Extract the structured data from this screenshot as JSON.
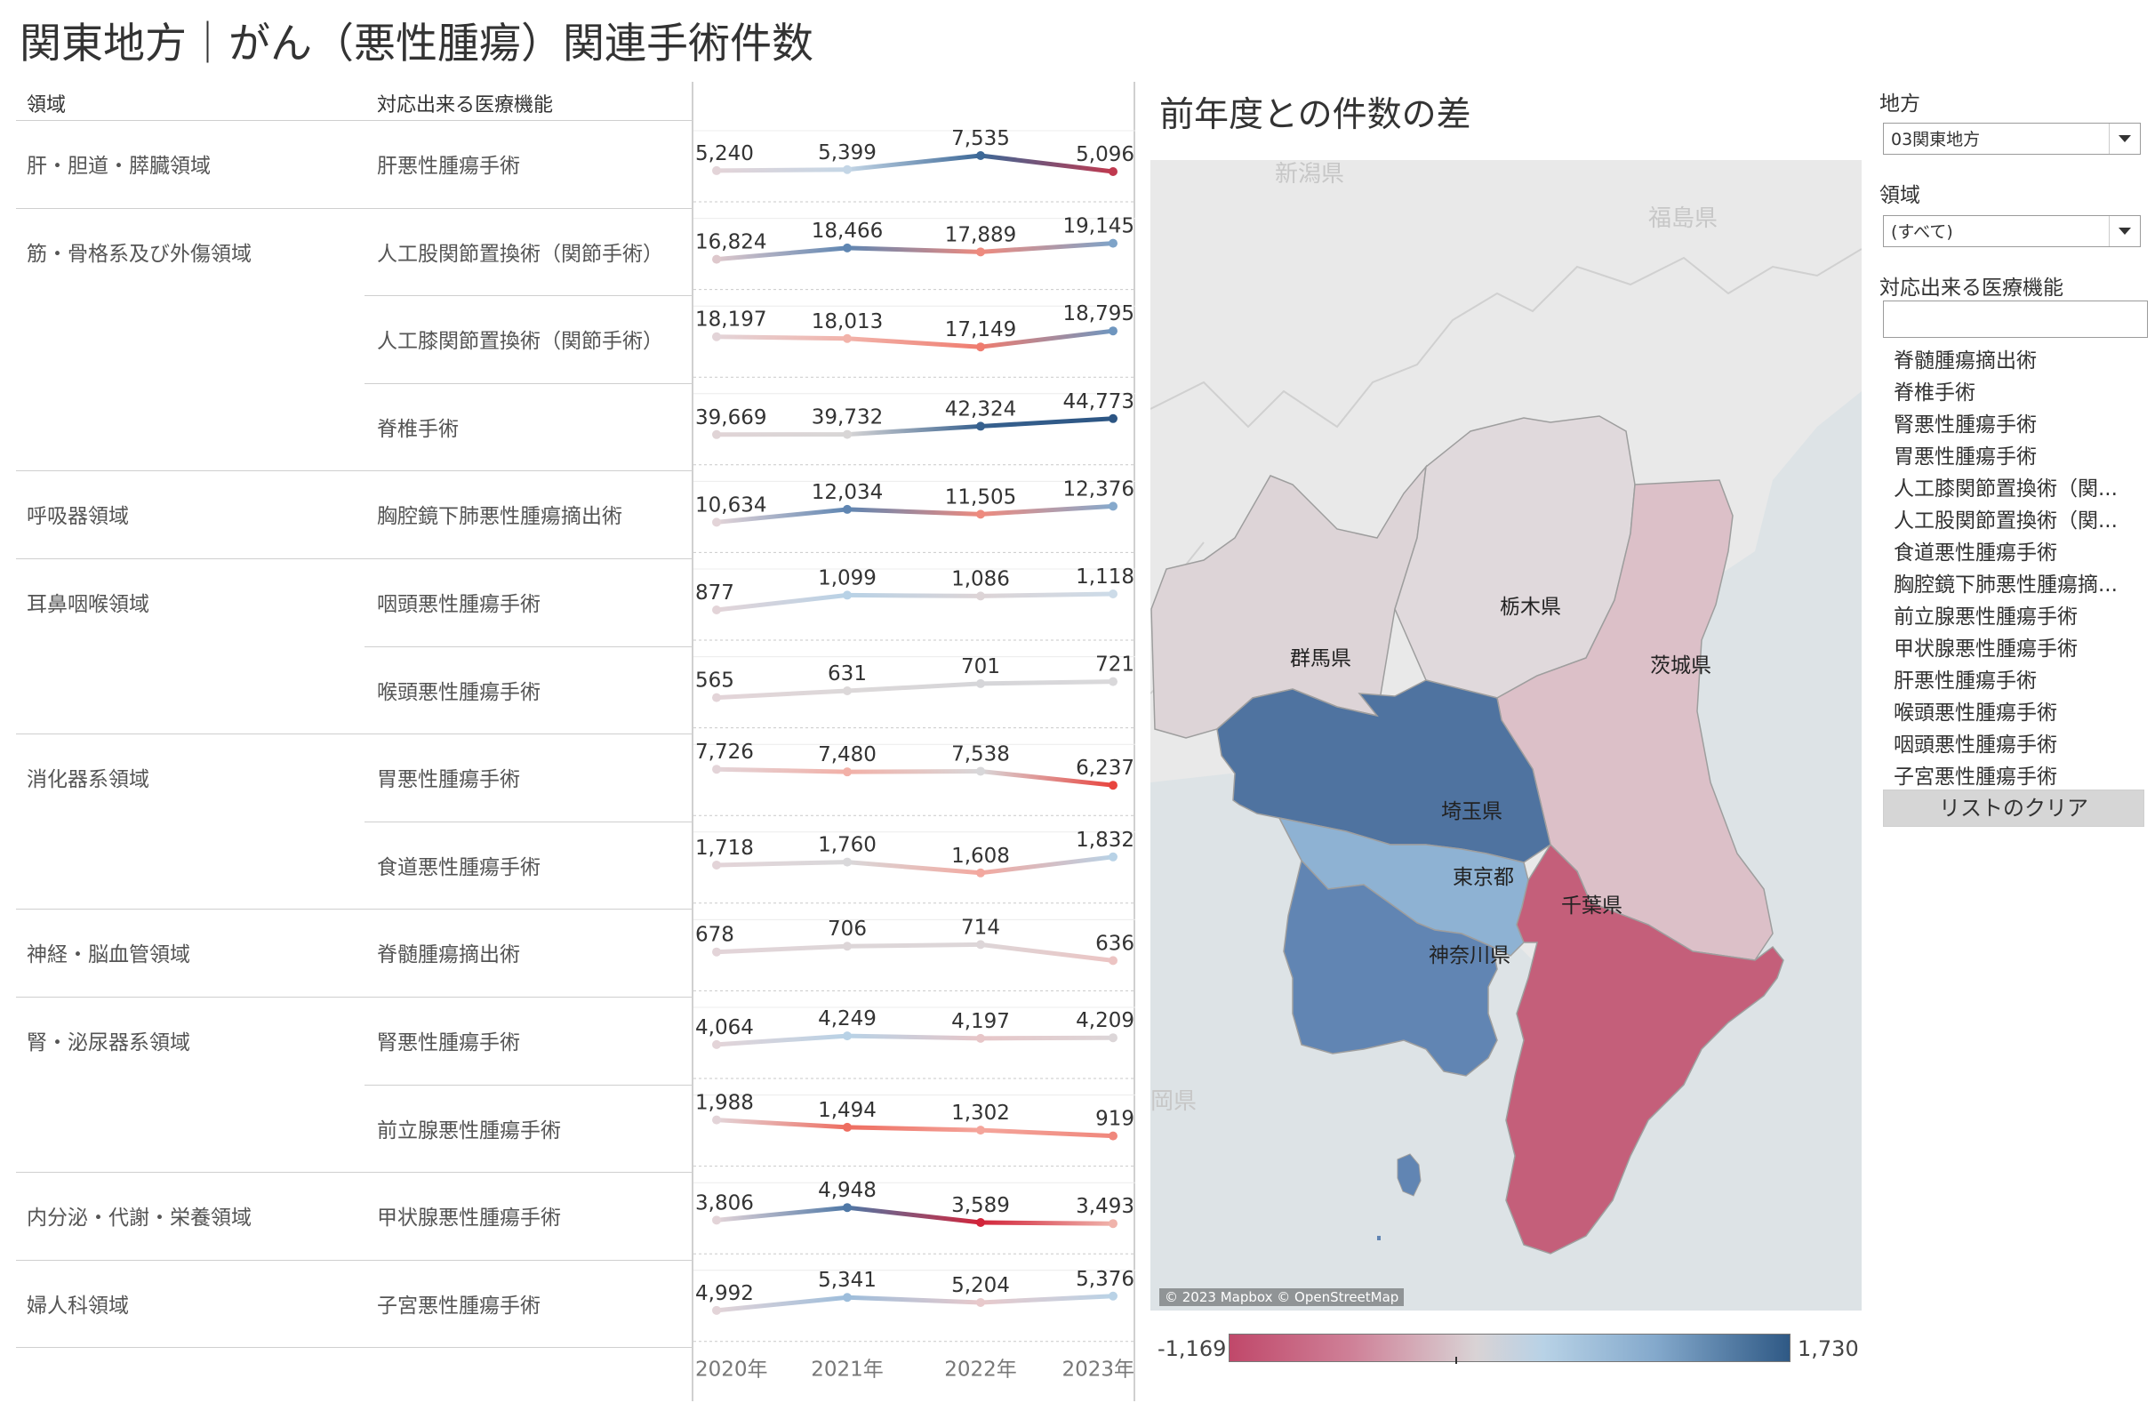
{
  "title": "関東地方｜がん（悪性腫瘍）関連手術件数",
  "table": {
    "col_area": "領域",
    "col_function": "対応出来る医療機能",
    "years": [
      "2020年",
      "2021年",
      "2022年",
      "2023年"
    ],
    "rows": [
      {
        "area": "肝・胆道・膵臓領域",
        "function": "肝悪性腫瘍手術",
        "values": [
          5240,
          5399,
          7535,
          5096
        ],
        "labels": [
          "5,240",
          "5,399",
          "7,535",
          "5,096"
        ],
        "colors": [
          "#e3d4d8",
          "#c4d6e6",
          "#3c6897",
          "#c0394f"
        ]
      },
      {
        "area": "筋・骨格系及び外傷領域",
        "function": "人工股関節置換術（関節手術）",
        "values": [
          16824,
          18466,
          17889,
          19145
        ],
        "labels": [
          "16,824",
          "18,466",
          "17,889",
          "19,145"
        ],
        "colors": [
          "#dec8cc",
          "#5f86b2",
          "#ee8a7e",
          "#7ea3c8"
        ]
      },
      {
        "area": "",
        "function": "人工膝関節置換術（関節手術）",
        "values": [
          18197,
          18013,
          17149,
          18795
        ],
        "labels": [
          "18,197",
          "18,013",
          "17,149",
          "18,795"
        ],
        "colors": [
          "#e3d4d8",
          "#f2b3aa",
          "#ef7c6f",
          "#6f96bf"
        ]
      },
      {
        "area": "",
        "function": "脊椎手術",
        "values": [
          39669,
          39732,
          42324,
          44773
        ],
        "labels": [
          "39,669",
          "39,732",
          "42,324",
          "44,773"
        ],
        "colors": [
          "#e0d4d6",
          "#d8d6d6",
          "#36608e",
          "#2c5583"
        ]
      },
      {
        "area": "呼吸器領域",
        "function": "胸腔鏡下肺悪性腫瘍摘出術",
        "values": [
          10634,
          12034,
          11505,
          12376
        ],
        "labels": [
          "10,634",
          "12,034",
          "11,505",
          "12,376"
        ],
        "colors": [
          "#e3d4d8",
          "#5f86b2",
          "#ee8a7e",
          "#86a9cc"
        ]
      },
      {
        "area": "耳鼻咽喉領域",
        "function": "咽頭悪性腫瘍手術",
        "values": [
          877,
          1099,
          1086,
          1118
        ],
        "labels": [
          "877",
          "1,099",
          "1,086",
          "1,118"
        ],
        "colors": [
          "#e3d4d8",
          "#b8d2e6",
          "#ddd4d6",
          "#ccdbe8"
        ]
      },
      {
        "area": "",
        "function": "喉頭悪性腫瘍手術",
        "values": [
          565,
          631,
          701,
          721
        ],
        "labels": [
          "565",
          "631",
          "701",
          "721"
        ],
        "colors": [
          "#e3d4d8",
          "#dcd8d9",
          "#d6d6d9",
          "#d9d8da"
        ]
      },
      {
        "area": "消化器系領域",
        "function": "胃悪性腫瘍手術",
        "values": [
          7726,
          7480,
          7538,
          6237
        ],
        "labels": [
          "7,726",
          "7,480",
          "7,538",
          "6,237"
        ],
        "colors": [
          "#e3d4d8",
          "#f2b0a7",
          "#d8d7d9",
          "#e8443e"
        ]
      },
      {
        "area": "",
        "function": "食道悪性腫瘍手術",
        "values": [
          1718,
          1760,
          1608,
          1832
        ],
        "labels": [
          "1,718",
          "1,760",
          "1,608",
          "1,832"
        ],
        "colors": [
          "#e3d4d8",
          "#d9d8da",
          "#f3a89f",
          "#b8d2e6"
        ]
      },
      {
        "area": "神経・脳血管領域",
        "function": "脊髄腫瘍摘出術",
        "values": [
          678,
          706,
          714,
          636
        ],
        "labels": [
          "678",
          "706",
          "714",
          "636"
        ],
        "colors": [
          "#e3d4d8",
          "#ddd6d8",
          "#ddd6d8",
          "#ecc4c3"
        ]
      },
      {
        "area": "腎・泌尿器系領域",
        "function": "腎悪性腫瘍手術",
        "values": [
          4064,
          4249,
          4197,
          4209
        ],
        "labels": [
          "4,064",
          "4,249",
          "4,197",
          "4,209"
        ],
        "colors": [
          "#e3d4d8",
          "#b8d2e6",
          "#e7c6c8",
          "#dcd6d8"
        ]
      },
      {
        "area": "",
        "function": "前立腺悪性腫瘍手術",
        "values": [
          1988,
          1494,
          1302,
          919
        ],
        "labels": [
          "1,988",
          "1,494",
          "1,302",
          "919"
        ],
        "colors": [
          "#e3d4d8",
          "#ee6d60",
          "#f4a59b",
          "#f0877c"
        ]
      },
      {
        "area": "内分泌・代謝・栄養領域",
        "function": "甲状腺悪性腫瘍手術",
        "values": [
          3806,
          4948,
          3589,
          3493
        ],
        "labels": [
          "3,806",
          "4,948",
          "3,589",
          "3,493"
        ],
        "colors": [
          "#e3d4d8",
          "#4f78a6",
          "#d2243a",
          "#f0b3ab"
        ]
      },
      {
        "area": "婦人科領域",
        "function": "子宮悪性腫瘍手術",
        "values": [
          4992,
          5341,
          5204,
          5376
        ],
        "labels": [
          "4,992",
          "5,341",
          "5,204",
          "5,376"
        ],
        "colors": [
          "#e3d4d8",
          "#9dbddb",
          "#e8c9cb",
          "#b9d2e6"
        ]
      }
    ]
  },
  "map": {
    "title": "前年度との件数の差",
    "attribution": "© 2023 Mapbox © OpenStreetMap",
    "labels": {
      "niigata": "新潟県",
      "fukushima": "福島県",
      "tochigi": "栃木県",
      "gunma": "群馬県",
      "ibaraki": "茨城県",
      "saitama": "埼玉県",
      "tokyo": "東京都",
      "chiba": "千葉県",
      "kanagawa": "神奈川県",
      "shizuoka_partial": "岡県"
    },
    "colors": {
      "gunma": "#ddd4d7",
      "tochigi": "#e0d9dc",
      "ibaraki": "#dcc0c8",
      "saitama": "#4f73a0",
      "tokyo": "#8eb2d3",
      "kanagawa": "#6185b3",
      "chiba": "#c45f7a"
    },
    "legend": {
      "min_label": "-1,169",
      "max_label": "1,730"
    }
  },
  "filters": {
    "region_label": "地方",
    "region_value": "03関東地方",
    "area_label": "領域",
    "area_value": "(すべて)",
    "function_label": "対応出来る医療機能",
    "function_search_value": "",
    "function_list": [
      "脊髄腫瘍摘出術",
      "脊椎手術",
      "腎悪性腫瘍手術",
      "胃悪性腫瘍手術",
      "人工膝関節置換術（関...",
      "人工股関節置換術（関...",
      "食道悪性腫瘍手術",
      "胸腔鏡下肺悪性腫瘍摘...",
      "前立腺悪性腫瘍手術",
      "甲状腺悪性腫瘍手術",
      "肝悪性腫瘍手術",
      "喉頭悪性腫瘍手術",
      "咽頭悪性腫瘍手術",
      "子宮悪性腫瘍手術"
    ],
    "clear_button": "リストのクリア"
  }
}
